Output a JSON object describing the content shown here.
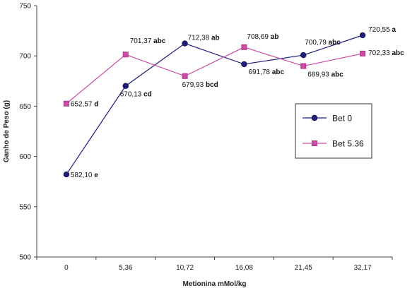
{
  "chart_data": {
    "type": "line",
    "xlabel": "Metionina mMol/kg",
    "ylabel": "Ganho de Peso (g)",
    "categories": [
      "0",
      "5,36",
      "10,72",
      "16,08",
      "21,45",
      "32,17"
    ],
    "ylim": [
      500,
      750
    ],
    "yticks": [
      500,
      550,
      600,
      650,
      700,
      750
    ],
    "grid": false,
    "legend_position": "right",
    "series": [
      {
        "name": "Bet 0",
        "color": "#1f1f7a",
        "marker": "circle",
        "values": [
          582.1,
          670.13,
          712.38,
          691.78,
          700.79,
          720.55
        ],
        "labels": [
          {
            "value": "582,10",
            "group": "e"
          },
          {
            "value": "670,13",
            "group": "cd"
          },
          {
            "value": "712,38",
            "group": "ab"
          },
          {
            "value": "691,78",
            "group": "abc"
          },
          {
            "value": "700,79",
            "group": "abc"
          },
          {
            "value": "720,55",
            "group": "a"
          }
        ]
      },
      {
        "name": "Bet 5.36",
        "color": "#cc4aa6",
        "marker": "square",
        "values": [
          652.57,
          701.37,
          679.93,
          708.69,
          689.93,
          702.33
        ],
        "labels": [
          {
            "value": "652,57",
            "group": "d"
          },
          {
            "value": "701,37",
            "group": "abc"
          },
          {
            "value": "679,93",
            "group": "bcd"
          },
          {
            "value": "708,69",
            "group": "ab"
          },
          {
            "value": "689,93",
            "group": "abc"
          },
          {
            "value": "702,33",
            "group": "abc"
          }
        ]
      }
    ]
  }
}
